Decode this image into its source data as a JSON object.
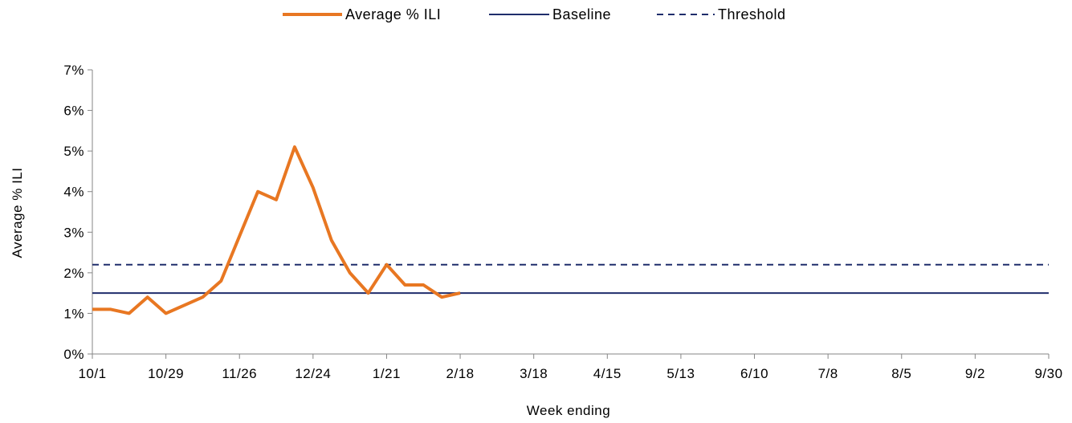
{
  "chart_data": {
    "type": "line",
    "xlabel": "Week ending",
    "ylabel": "Average % ILI",
    "ylim": [
      0,
      7
    ],
    "y_unit": "%",
    "y_ticks": [
      0,
      1,
      2,
      3,
      4,
      5,
      6,
      7
    ],
    "y_tick_labels": [
      "0%",
      "1%",
      "2%",
      "3%",
      "4%",
      "5%",
      "6%",
      "7%"
    ],
    "x_tick_labels": [
      "10/1",
      "10/29",
      "11/26",
      "12/24",
      "1/21",
      "2/18",
      "3/18",
      "4/15",
      "5/13",
      "6/10",
      "7/8",
      "8/5",
      "9/2",
      "9/30"
    ],
    "grid": false,
    "legend_position": "top-center",
    "legend": [
      "Average % ILI",
      "Baseline",
      "Threshold"
    ],
    "series": [
      {
        "name": "Average % ILI",
        "style": "solid",
        "color": "#E87722",
        "x": [
          "10/1",
          "10/8",
          "10/15",
          "10/22",
          "10/29",
          "11/5",
          "11/12",
          "11/19",
          "11/26",
          "12/3",
          "12/10",
          "12/17",
          "12/24",
          "12/31",
          "1/7",
          "1/14",
          "1/21",
          "1/28",
          "2/4",
          "2/11",
          "2/18"
        ],
        "values": [
          1.1,
          1.1,
          1.0,
          1.4,
          1.0,
          1.2,
          1.4,
          1.8,
          2.9,
          4.0,
          3.8,
          5.1,
          4.1,
          2.8,
          2.0,
          1.5,
          2.2,
          1.7,
          1.7,
          1.4,
          1.5
        ]
      },
      {
        "name": "Baseline",
        "style": "solid",
        "color": "#1F2D6B",
        "x": [
          "10/1",
          "9/30"
        ],
        "values": [
          1.5,
          1.5
        ]
      },
      {
        "name": "Threshold",
        "style": "dashed",
        "color": "#1F2D6B",
        "x": [
          "10/1",
          "9/30"
        ],
        "values": [
          2.2,
          2.2
        ]
      }
    ]
  }
}
